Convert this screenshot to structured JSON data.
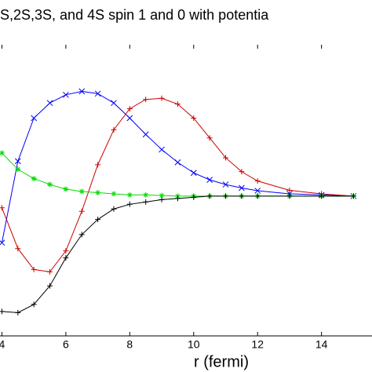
{
  "chart_data": {
    "type": "line",
    "title": "S,2S,3S, and 4S spin 1 and 0 with potentia",
    "x_label": "r (fermi)",
    "x": [
      4,
      4.5,
      5,
      5.5,
      6,
      6.5,
      7,
      7.5,
      8,
      8.5,
      9,
      9.5,
      10,
      10.5,
      11,
      11.5,
      12,
      13,
      14,
      15
    ],
    "series": [
      {
        "color": "#0000ff",
        "marker": "x",
        "values": [
          -0.4,
          0.3,
          0.67,
          0.8,
          0.87,
          0.9,
          0.88,
          0.8,
          0.67,
          0.53,
          0.4,
          0.29,
          0.2,
          0.14,
          0.1,
          0.07,
          0.047,
          0.02,
          0.01,
          0
        ]
      },
      {
        "color": "#cc0000",
        "marker": "+",
        "values": [
          -0.1,
          -0.45,
          -0.63,
          -0.65,
          -0.47,
          -0.13,
          0.27,
          0.57,
          0.75,
          0.83,
          0.84,
          0.79,
          0.67,
          0.5,
          0.33,
          0.21,
          0.13,
          0.05,
          0.02,
          0
        ]
      },
      {
        "color": "#00dd00",
        "marker": "*",
        "values": [
          0.37,
          0.23,
          0.15,
          0.1,
          0.06,
          0.04,
          0.03,
          0.02,
          0.01,
          0.01,
          0.005,
          0,
          0,
          0,
          0,
          0,
          0,
          0,
          0,
          0
        ]
      },
      {
        "color": "#000000",
        "marker": "+",
        "values": [
          -0.99,
          -1.0,
          -0.93,
          -0.77,
          -0.53,
          -0.33,
          -0.2,
          -0.11,
          -0.07,
          -0.05,
          -0.03,
          -0.02,
          -0.01,
          0,
          0,
          0,
          0,
          0,
          0,
          0
        ]
      }
    ],
    "xlim": [
      3.94,
      15.58
    ],
    "ylim": [
      -1.2,
      1.3
    ],
    "xticks": [
      4,
      6,
      8,
      10,
      12,
      14
    ]
  }
}
